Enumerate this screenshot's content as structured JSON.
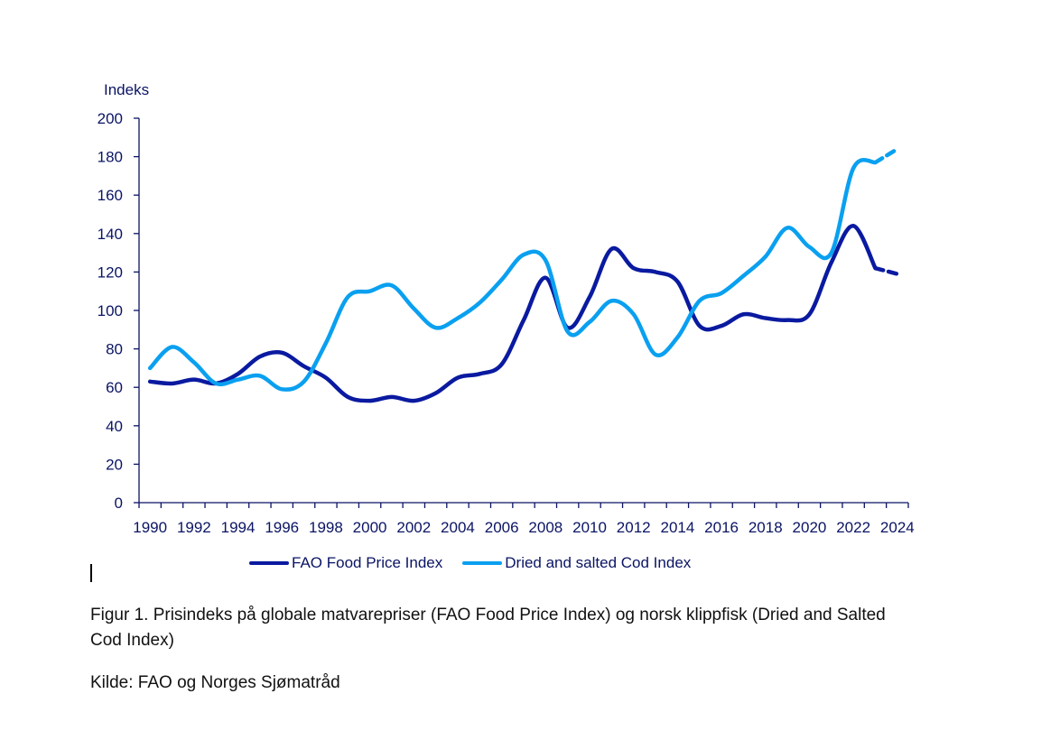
{
  "chart_data": {
    "type": "line",
    "title": "",
    "xlabel": "",
    "ylabel": "Indeks",
    "ylim": [
      0,
      200
    ],
    "yticks": [
      0,
      20,
      40,
      60,
      80,
      100,
      120,
      140,
      160,
      180,
      200
    ],
    "grid": false,
    "legend_position": "bottom",
    "x": [
      1990,
      1991,
      1992,
      1993,
      1994,
      1995,
      1996,
      1997,
      1998,
      1999,
      2000,
      2001,
      2002,
      2003,
      2004,
      2005,
      2006,
      2007,
      2008,
      2009,
      2010,
      2011,
      2012,
      2013,
      2014,
      2015,
      2016,
      2017,
      2018,
      2019,
      2020,
      2021,
      2022,
      2023,
      2024
    ],
    "xtick_labels": [
      "1990",
      "1992",
      "1994",
      "1996",
      "1998",
      "2000",
      "2002",
      "2004",
      "2006",
      "2008",
      "2010",
      "2012",
      "2014",
      "2016",
      "2018",
      "2020",
      "2022",
      "2024"
    ],
    "dashed_from": 2023,
    "series": [
      {
        "name": "FAO Food Price Index",
        "color": "#0a1aa0",
        "values": [
          63,
          62,
          64,
          62,
          67,
          76,
          78,
          71,
          65,
          55,
          53,
          55,
          53,
          57,
          65,
          67,
          72,
          95,
          117,
          91,
          107,
          132,
          122,
          120,
          115,
          92,
          92,
          98,
          96,
          95,
          98,
          125,
          144,
          122,
          119
        ]
      },
      {
        "name": "Dried and salted Cod Index",
        "color": "#0aa0f0",
        "values": [
          70,
          81,
          73,
          62,
          64,
          66,
          59,
          63,
          83,
          107,
          110,
          113,
          101,
          91,
          96,
          104,
          116,
          129,
          126,
          89,
          94,
          105,
          98,
          77,
          86,
          105,
          109,
          118,
          128,
          143,
          133,
          130,
          174,
          177,
          184
        ]
      }
    ]
  },
  "caption": {
    "figure": "Figur 1. Prisindeks på globale matvarepriser (FAO Food Price Index) og norsk klippfisk (Dried and Salted Cod Index)",
    "source": "Kilde: FAO og Norges Sjømatråd"
  },
  "colors": {
    "axis": "#0a1464",
    "text": "#0a1464"
  }
}
